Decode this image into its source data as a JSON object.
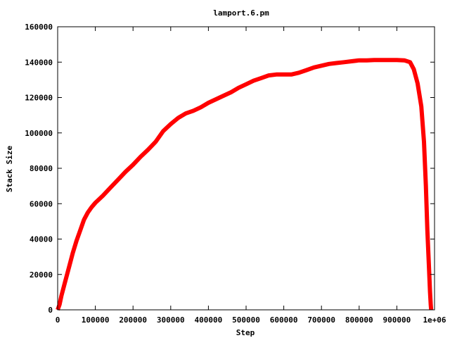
{
  "chart_data": {
    "type": "line",
    "title": "lamport.6.pm",
    "xlabel": "Step",
    "ylabel": "Stack Size",
    "xlim": [
      0,
      1000000
    ],
    "ylim": [
      0,
      160000
    ],
    "x_ticks": [
      0,
      100000,
      200000,
      300000,
      400000,
      500000,
      600000,
      700000,
      800000,
      900000,
      1000000
    ],
    "x_tick_labels": [
      "0",
      "100000",
      "200000",
      "300000",
      "400000",
      "500000",
      "600000",
      "700000",
      "800000",
      "900000",
      "1e+06"
    ],
    "y_ticks": [
      0,
      20000,
      40000,
      60000,
      80000,
      100000,
      120000,
      140000,
      160000
    ],
    "y_tick_labels": [
      "0",
      "20000",
      "40000",
      "60000",
      "80000",
      "100000",
      "120000",
      "140000",
      "160000"
    ],
    "grid": false,
    "series": [
      {
        "color": "#ff0000",
        "x": [
          0,
          5000,
          10000,
          20000,
          30000,
          40000,
          50000,
          60000,
          70000,
          80000,
          90000,
          100000,
          120000,
          140000,
          160000,
          180000,
          200000,
          220000,
          240000,
          260000,
          280000,
          300000,
          320000,
          340000,
          360000,
          380000,
          400000,
          420000,
          440000,
          460000,
          480000,
          500000,
          520000,
          540000,
          560000,
          580000,
          600000,
          620000,
          640000,
          660000,
          680000,
          700000,
          720000,
          740000,
          760000,
          780000,
          800000,
          820000,
          840000,
          860000,
          880000,
          900000,
          920000,
          935000,
          945000,
          955000,
          965000,
          972000,
          977000,
          981000,
          985000,
          988000,
          990000,
          991000
        ],
        "y": [
          0,
          3000,
          8000,
          16000,
          24000,
          32000,
          39000,
          45000,
          51000,
          55000,
          58000,
          60500,
          64500,
          69000,
          73500,
          78000,
          82000,
          86500,
          90500,
          95000,
          101000,
          105000,
          108500,
          111000,
          112500,
          114500,
          117000,
          119000,
          121000,
          123000,
          125500,
          127500,
          129500,
          131000,
          132500,
          133000,
          133000,
          133000,
          134000,
          135500,
          137000,
          138000,
          139000,
          139500,
          140000,
          140500,
          141000,
          141000,
          141200,
          141200,
          141200,
          141200,
          141000,
          140000,
          136000,
          128000,
          115000,
          95000,
          70000,
          45000,
          25000,
          10000,
          3000,
          0
        ]
      }
    ]
  }
}
